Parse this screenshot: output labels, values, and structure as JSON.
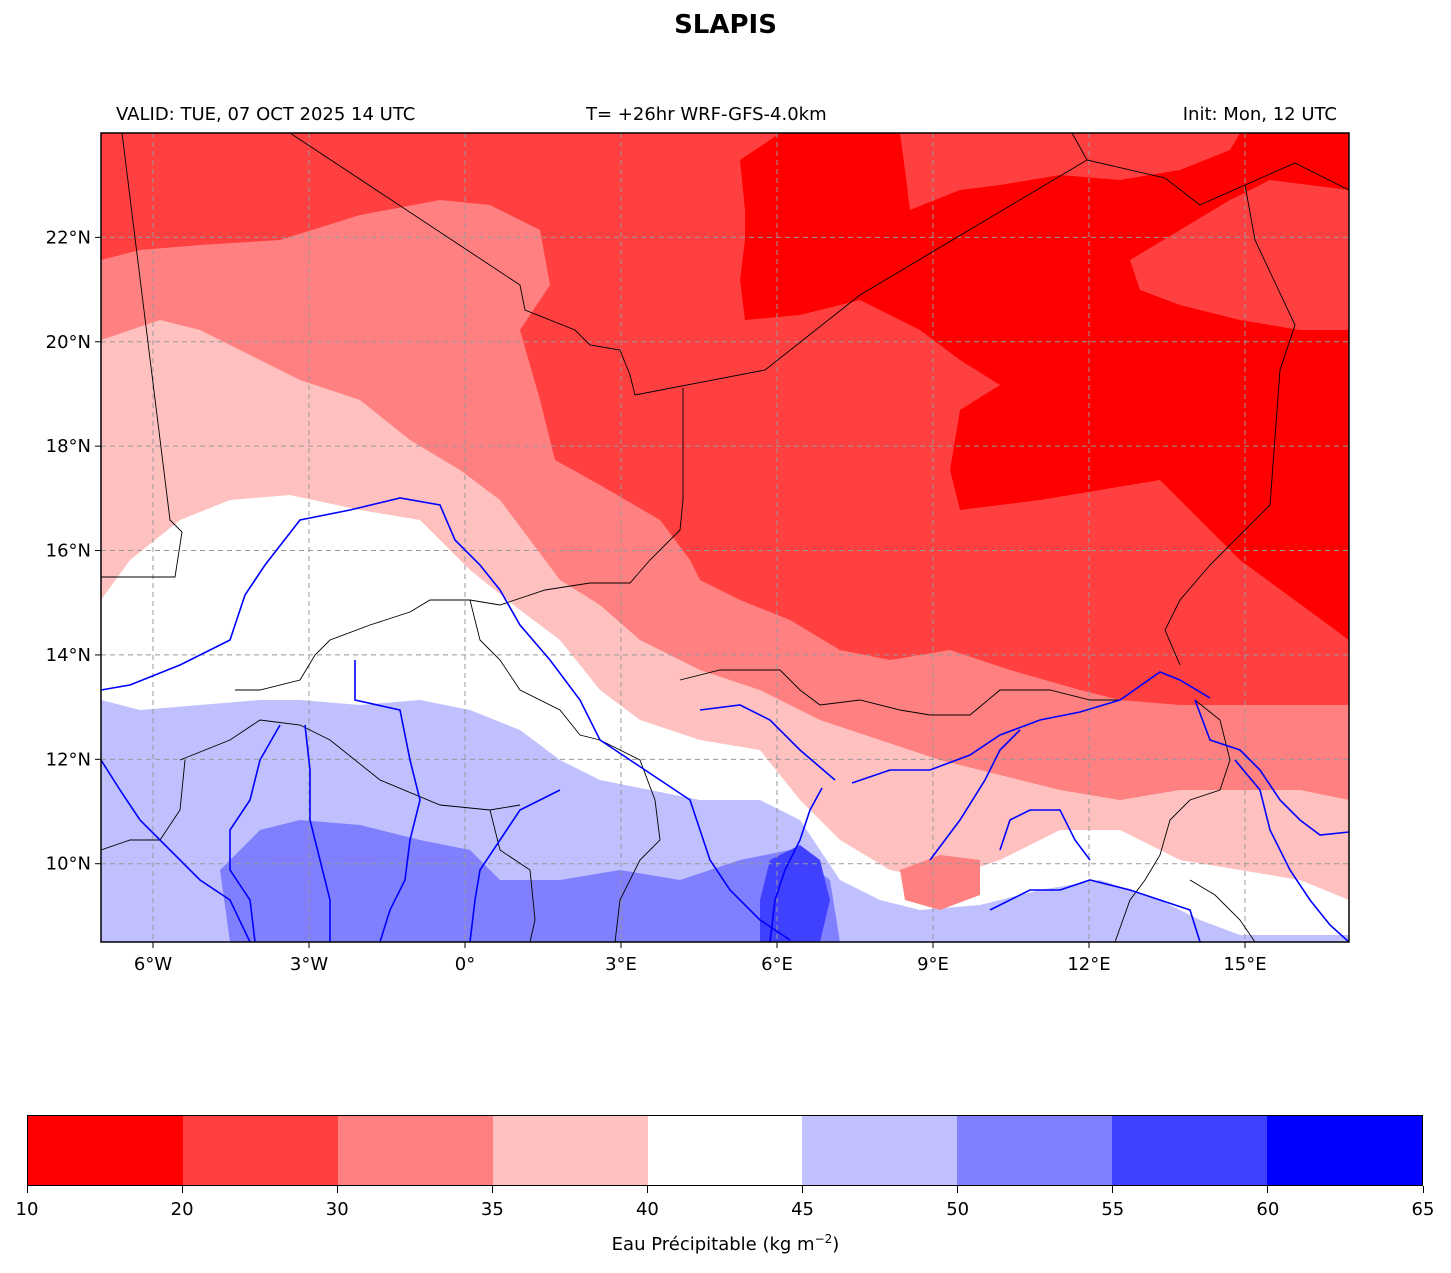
{
  "title": "SLAPIS",
  "header": {
    "valid": "VALID: TUE, 07 OCT 2025 14 UTC",
    "run": "T= +26hr WRF-GFS-4.0km",
    "init": "Init: Mon, 12 UTC"
  },
  "map": {
    "lon_range": [
      -7,
      17
    ],
    "lat_range": [
      8.5,
      24
    ],
    "lon_ticks": [
      {
        "value": -6,
        "label": "6°W"
      },
      {
        "value": -3,
        "label": "3°W"
      },
      {
        "value": 0,
        "label": "0°"
      },
      {
        "value": 3,
        "label": "3°E"
      },
      {
        "value": 6,
        "label": "6°E"
      },
      {
        "value": 9,
        "label": "9°E"
      },
      {
        "value": 12,
        "label": "12°E"
      },
      {
        "value": 15,
        "label": "15°E"
      }
    ],
    "lat_ticks": [
      {
        "value": 10,
        "label": "10°N"
      },
      {
        "value": 12,
        "label": "12°N"
      },
      {
        "value": 14,
        "label": "14°N"
      },
      {
        "value": 16,
        "label": "16°N"
      },
      {
        "value": 18,
        "label": "18°N"
      },
      {
        "value": 20,
        "label": "20°N"
      },
      {
        "value": 22,
        "label": "22°N"
      }
    ],
    "grid": true,
    "colors": {
      "lt20": "#ff0000",
      "c20_30": "#ff4040",
      "c30_35": "#ff8080",
      "c35_40": "#ffc0c0",
      "c40_45": "#ffffff",
      "c45_50": "#c0c0ff",
      "c50_55": "#8080ff",
      "c55_60": "#4040ff",
      "gt60": "#0000ff",
      "river": "#0000ff",
      "border": "#000000"
    }
  },
  "colorbar": {
    "levels": [
      "10",
      "20",
      "30",
      "35",
      "40",
      "45",
      "50",
      "55",
      "60",
      "65"
    ],
    "colors": [
      "#ff0000",
      "#ff4040",
      "#ff8080",
      "#ffc0c0",
      "#ffffff",
      "#c0c0ff",
      "#8080ff",
      "#4040ff",
      "#0000ff"
    ],
    "label_text": "Eau Précipitable (kg m",
    "label_exp": "−2",
    "label_close": ")"
  }
}
